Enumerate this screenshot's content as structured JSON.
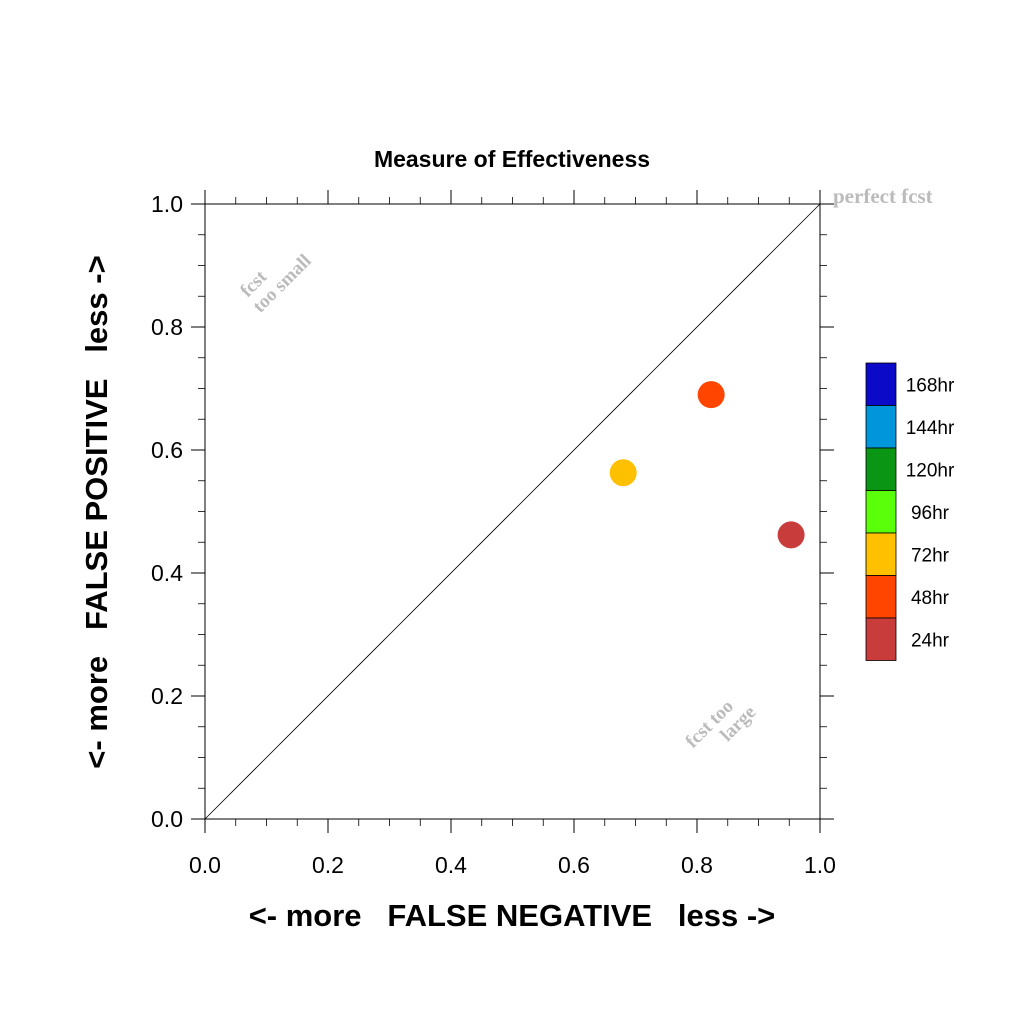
{
  "chart_data": {
    "type": "scatter",
    "title": "Measure of Effectiveness",
    "xlabel": "<- more   FALSE NEGATIVE   less ->",
    "ylabel": "<- more   FALSE POSITIVE   less ->",
    "xlim": [
      0,
      1
    ],
    "ylim": [
      0,
      1
    ],
    "x_ticks": [
      "0.0",
      "0.2",
      "0.4",
      "0.6",
      "0.8",
      "1.0"
    ],
    "y_ticks": [
      "0.0",
      "0.2",
      "0.4",
      "0.6",
      "0.8",
      "1.0"
    ],
    "grid": false,
    "reference_line": {
      "from": [
        0,
        0
      ],
      "to": [
        1,
        1
      ]
    },
    "annotations": {
      "perfect": "perfect fcst",
      "too_small": [
        "fcst",
        "too small"
      ],
      "too_large": [
        "fcst too",
        "large"
      ]
    },
    "points": [
      {
        "label": "72hr",
        "x": 0.68,
        "y": 0.563,
        "color": "#FFC000"
      },
      {
        "label": "48hr",
        "x": 0.823,
        "y": 0.69,
        "color": "#FF4500"
      },
      {
        "label": "24hr",
        "x": 0.953,
        "y": 0.462,
        "color": "#C83C3C"
      }
    ],
    "legend": {
      "placement": "right",
      "items": [
        {
          "label": "168hr",
          "color": "#0A0AC8"
        },
        {
          "label": "144hr",
          "color": "#0096DC"
        },
        {
          "label": "120hr",
          "color": "#0A9614"
        },
        {
          "label": "96hr",
          "color": "#5AFF0A"
        },
        {
          "label": "72hr",
          "color": "#FFC000"
        },
        {
          "label": "48hr",
          "color": "#FF4500"
        },
        {
          "label": "24hr",
          "color": "#C83C3C"
        }
      ]
    }
  }
}
